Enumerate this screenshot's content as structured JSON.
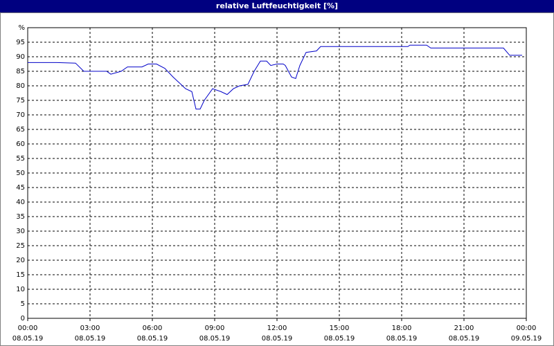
{
  "chart_data": {
    "type": "line",
    "title": "relative Luftfeuchtigkeit [%]",
    "color": "#0000c8",
    "grid": true,
    "x": [
      0,
      1.4,
      2.3,
      2.7,
      3.8,
      4.0,
      4.5,
      4.8,
      5.5,
      5.8,
      6.2,
      6.6,
      7.0,
      7.3,
      7.6,
      7.9,
      8.1,
      8.3,
      8.5,
      8.9,
      9.3,
      9.6,
      9.9,
      10.2,
      10.6,
      10.9,
      11.2,
      11.5,
      11.7,
      12.0,
      12.3,
      12.4,
      12.7,
      12.9,
      13.1,
      13.4,
      13.9,
      14.1,
      18.3,
      18.4,
      19.2,
      19.4,
      22.9,
      23.2,
      23.8
    ],
    "values": [
      88,
      88,
      87.8,
      85,
      85,
      84,
      85,
      86.5,
      86.5,
      87.5,
      87.5,
      86,
      83,
      81,
      79,
      78,
      72,
      72,
      75,
      79,
      78,
      77,
      79,
      80,
      80.5,
      85,
      88.5,
      88.5,
      87,
      87.5,
      87.5,
      87,
      83,
      82.5,
      87,
      91.5,
      92,
      93.5,
      93.5,
      94,
      94,
      93,
      93,
      90.5,
      90.5
    ],
    "xlim": [
      0,
      24
    ],
    "ylim": [
      0,
      100
    ],
    "yticks": [
      0,
      5,
      10,
      15,
      20,
      25,
      30,
      35,
      40,
      45,
      50,
      55,
      60,
      65,
      70,
      75,
      80,
      85,
      90,
      95,
      {
        "value": 100,
        "label": "%"
      }
    ],
    "xticks": [
      {
        "value": 0,
        "label": "00:00",
        "date": "08.05.19"
      },
      {
        "value": 3,
        "label": "03:00",
        "date": "08.05.19"
      },
      {
        "value": 6,
        "label": "06:00",
        "date": "08.05.19"
      },
      {
        "value": 9,
        "label": "09:00",
        "date": "08.05.19"
      },
      {
        "value": 12,
        "label": "12:00",
        "date": "08.05.19"
      },
      {
        "value": 15,
        "label": "15:00",
        "date": "08.05.19"
      },
      {
        "value": 18,
        "label": "18:00",
        "date": "08.05.19"
      },
      {
        "value": 21,
        "label": "21:00",
        "date": "08.05.19"
      },
      {
        "value": 24,
        "label": "00:00",
        "date": "09.05.19"
      }
    ]
  }
}
